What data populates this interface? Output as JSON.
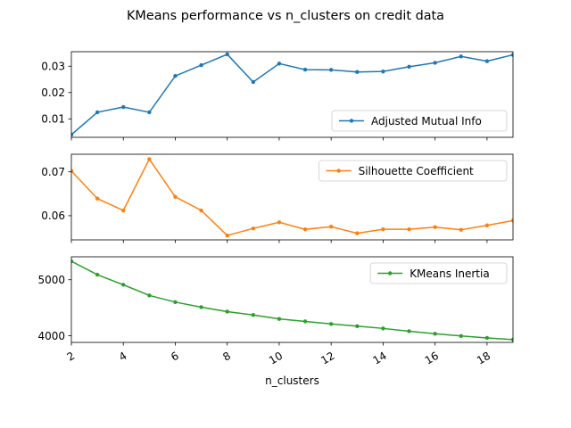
{
  "chart_data": {
    "title": "KMeans performance vs n_clusters on credit data",
    "type": "line",
    "xlabel": "n_clusters",
    "x": [
      2,
      3,
      4,
      5,
      6,
      7,
      8,
      9,
      10,
      11,
      12,
      13,
      14,
      15,
      16,
      17,
      18,
      19
    ],
    "xlim": [
      2,
      19
    ],
    "xticks": [
      2,
      4,
      6,
      8,
      10,
      12,
      14,
      16,
      18
    ],
    "grid": false,
    "subplots": [
      {
        "series": [
          {
            "name": "Adjusted Mutual Info",
            "color": "#1f77b4",
            "values": [
              0.004,
              0.0125,
              0.0145,
              0.0125,
              0.0263,
              0.0304,
              0.0345,
              0.024,
              0.031,
              0.0287,
              0.0286,
              0.0278,
              0.028,
              0.0298,
              0.0313,
              0.0337,
              0.0319,
              0.0343
            ]
          }
        ],
        "ylim": [
          0.003,
          0.0355
        ],
        "yticks": [
          0.01,
          0.02,
          0.03
        ],
        "ytick_labels": [
          "0.01",
          "0.02",
          "0.03"
        ],
        "legend": "lower right"
      },
      {
        "series": [
          {
            "name": "Silhouette Coefficient",
            "color": "#ff7f0e",
            "values": [
              0.0702,
              0.0639,
              0.0612,
              0.0729,
              0.0643,
              0.0612,
              0.0555,
              0.0571,
              0.0585,
              0.0569,
              0.0575,
              0.056,
              0.0569,
              0.0569,
              0.0574,
              0.0568,
              0.0578,
              0.0589
            ]
          }
        ],
        "ylim": [
          0.0545,
          0.074
        ],
        "yticks": [
          0.06,
          0.07
        ],
        "ytick_labels": [
          "0.06",
          "0.07"
        ],
        "legend": "upper right"
      },
      {
        "series": [
          {
            "name": "KMeans Inertia",
            "color": "#2ca02c",
            "values": [
              5330,
              5090,
              4910,
              4720,
              4600,
              4510,
              4430,
              4370,
              4300,
              4255,
              4210,
              4170,
              4130,
              4080,
              4035,
              3995,
              3960,
              3930
            ]
          }
        ],
        "ylim": [
          3880,
          5410
        ],
        "yticks": [
          4000,
          5000
        ],
        "ytick_labels": [
          "4000",
          "5000"
        ],
        "legend": "upper right"
      }
    ]
  }
}
